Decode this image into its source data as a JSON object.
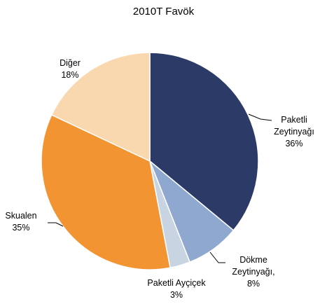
{
  "chart_data": {
    "type": "pie",
    "title": "2010T Favök",
    "categories": [
      "Paketli Zeytinyağı",
      "Dökme Zeytinyağı,",
      "Paketli Ayçiçek",
      "Skualen",
      "Diğer"
    ],
    "values": [
      36,
      8,
      3,
      35,
      18
    ],
    "value_labels": [
      "36%",
      "8%",
      "3%",
      "35%",
      "18%"
    ],
    "colors": [
      "#2b3a66",
      "#8ea8cf",
      "#c9d4e3",
      "#f39433",
      "#f9d8b0"
    ]
  }
}
